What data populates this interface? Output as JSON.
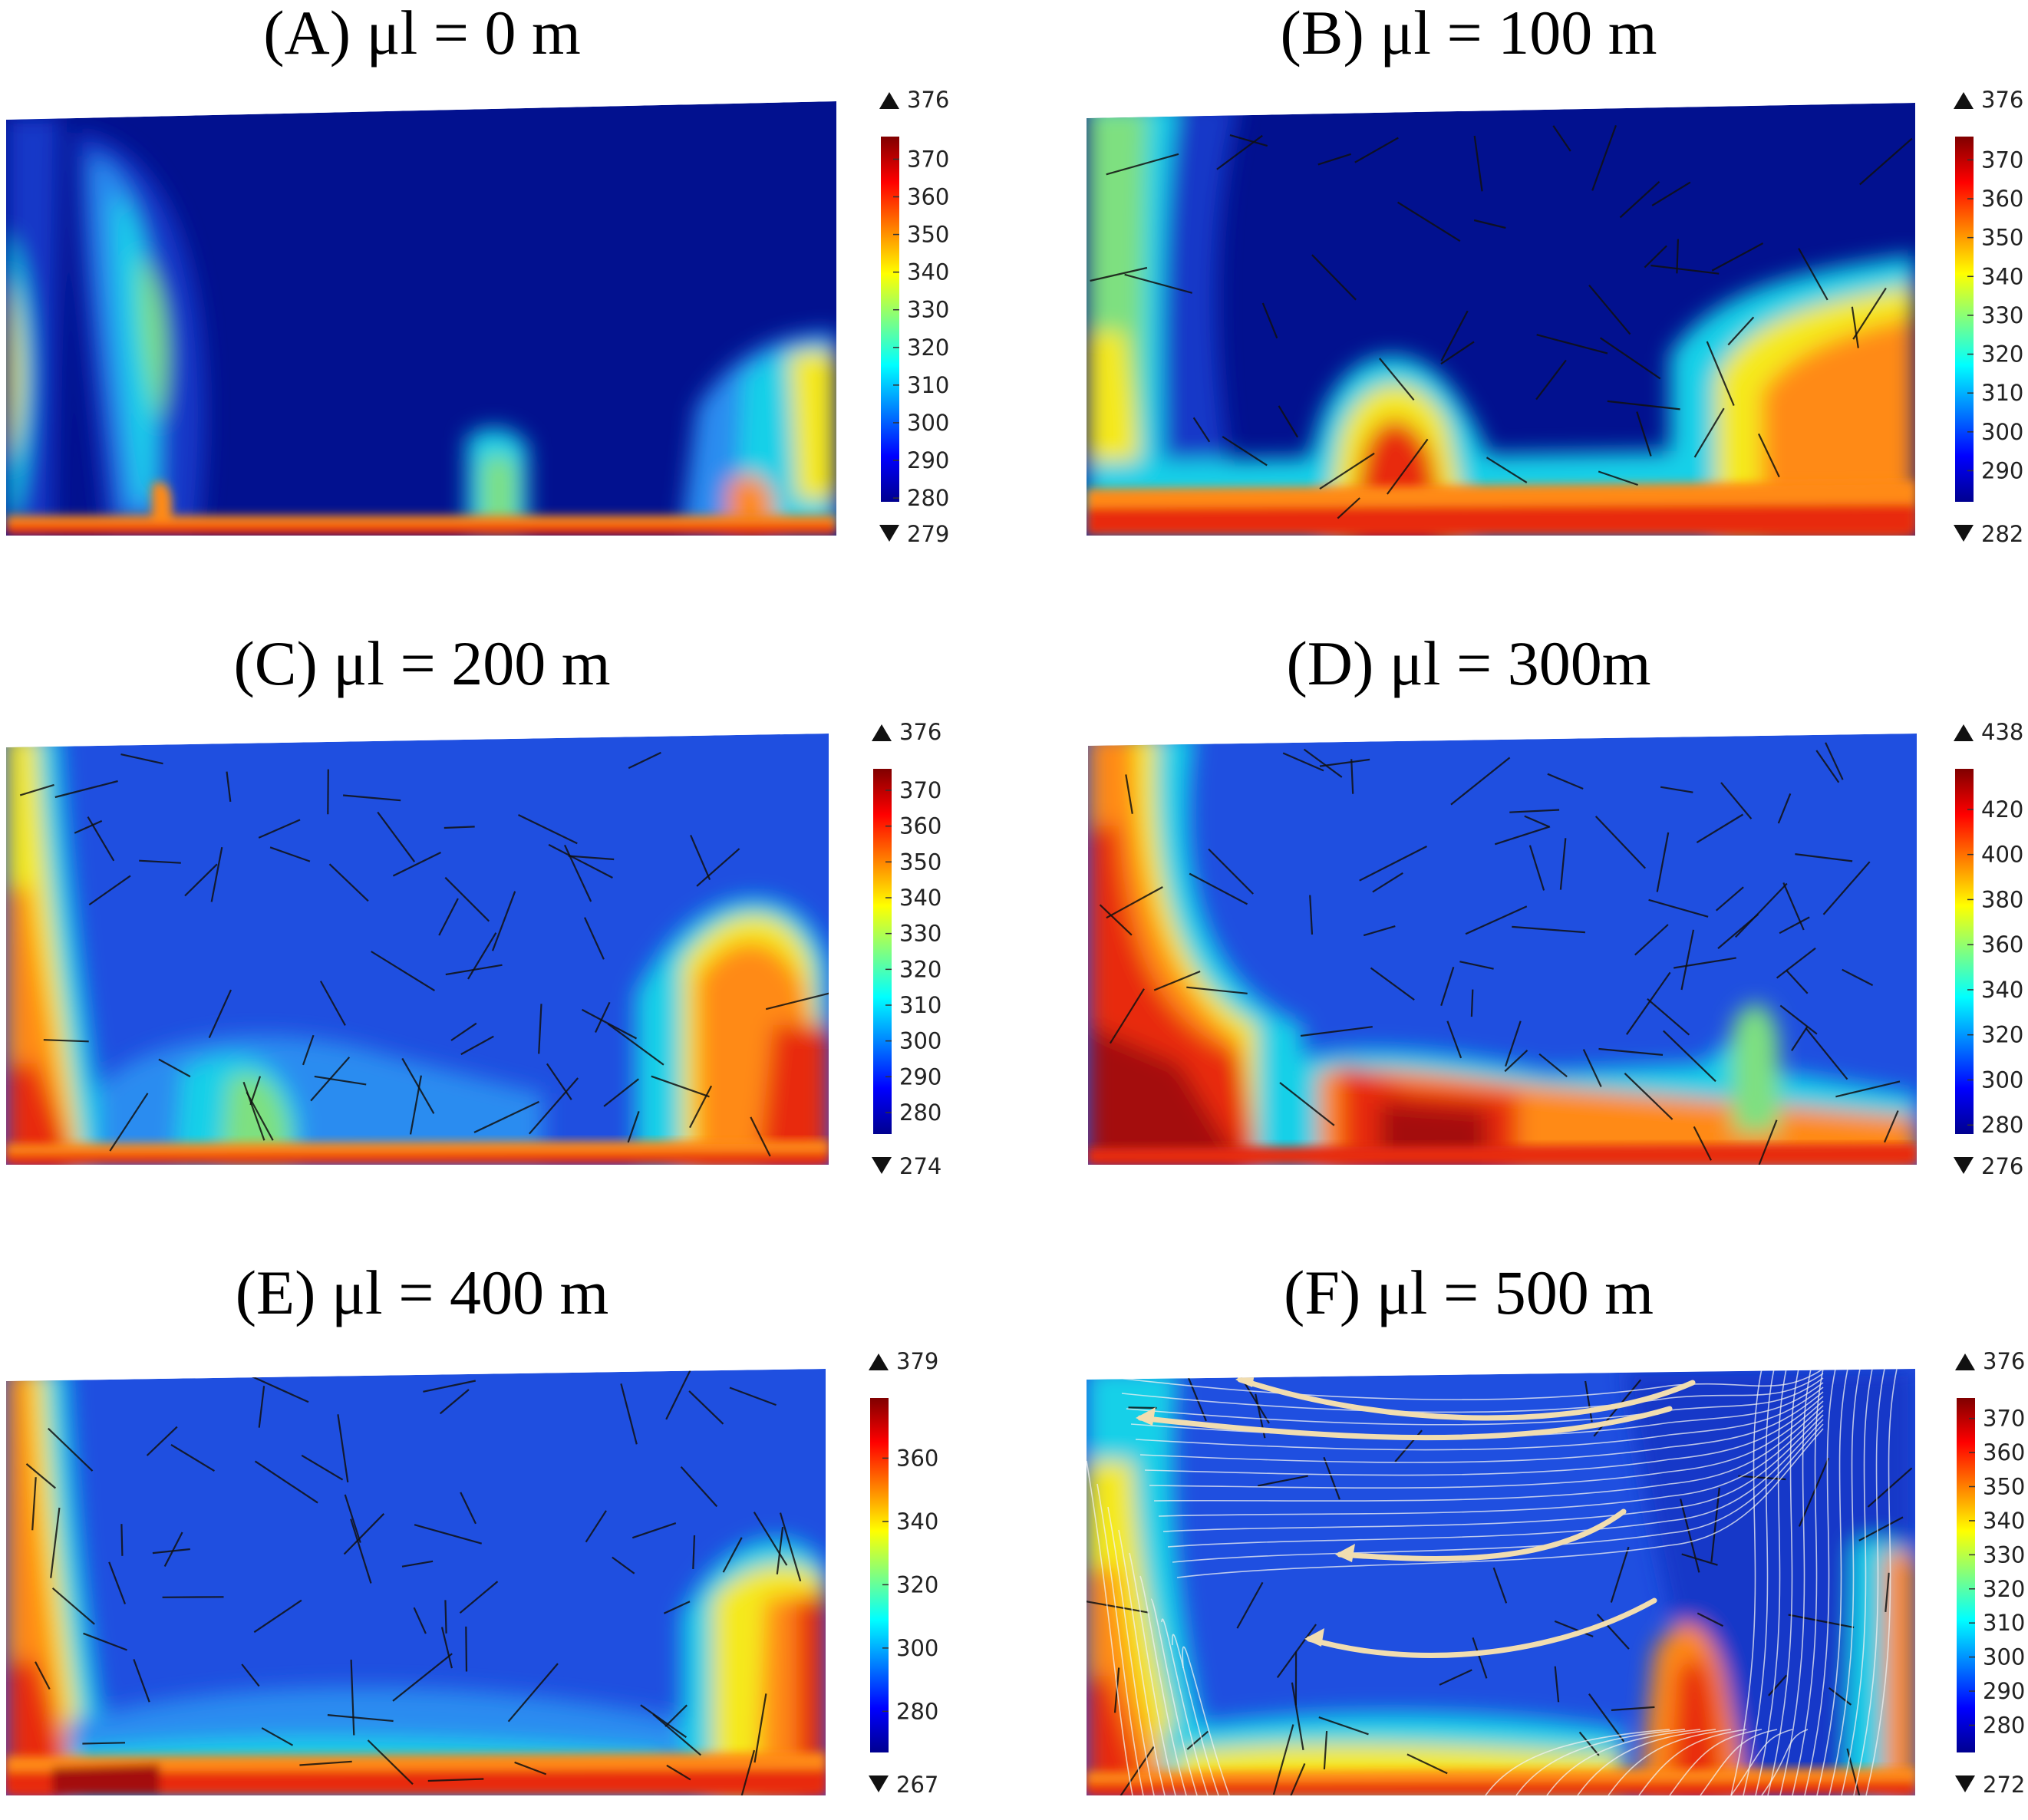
{
  "chart_data": [
    {
      "type": "heatmap",
      "title": "(A) μl = 0 m",
      "colorbar": {
        "max_label": "376",
        "min_label": "279",
        "range": [
          279,
          376
        ],
        "ticks": [
          "370",
          "360",
          "350",
          "340",
          "330",
          "320",
          "310",
          "300",
          "290",
          "280"
        ]
      },
      "colormap": "jet",
      "fractures_shown": false,
      "streamlines_shown": false
    },
    {
      "type": "heatmap",
      "title": "(B) μl = 100 m",
      "colorbar": {
        "max_label": "376",
        "min_label": "282",
        "range": [
          282,
          376
        ],
        "ticks": [
          "370",
          "360",
          "350",
          "340",
          "330",
          "320",
          "310",
          "300",
          "290"
        ]
      },
      "colormap": "jet",
      "fractures_shown": true,
      "streamlines_shown": false
    },
    {
      "type": "heatmap",
      "title": "(C) μl = 200 m",
      "colorbar": {
        "max_label": "376",
        "min_label": "274",
        "range": [
          274,
          376
        ],
        "ticks": [
          "370",
          "360",
          "350",
          "340",
          "330",
          "320",
          "310",
          "300",
          "290",
          "280"
        ]
      },
      "colormap": "jet",
      "fractures_shown": true,
      "streamlines_shown": false
    },
    {
      "type": "heatmap",
      "title": "(D) μl = 300m",
      "colorbar": {
        "max_label": "438",
        "min_label": "276",
        "range": [
          276,
          438
        ],
        "ticks": [
          "420",
          "400",
          "380",
          "360",
          "340",
          "320",
          "300",
          "280"
        ]
      },
      "colormap": "jet",
      "fractures_shown": true,
      "streamlines_shown": false
    },
    {
      "type": "heatmap",
      "title": "(E) μl = 400 m",
      "colorbar": {
        "max_label": "379",
        "min_label": "267",
        "range": [
          267,
          379
        ],
        "ticks": [
          "360",
          "340",
          "320",
          "300",
          "280"
        ]
      },
      "colormap": "jet",
      "fractures_shown": true,
      "streamlines_shown": false
    },
    {
      "type": "heatmap",
      "title": "(F) μl = 500 m",
      "colorbar": {
        "max_label": "376",
        "min_label": "272",
        "range": [
          272,
          376
        ],
        "ticks": [
          "370",
          "360",
          "350",
          "340",
          "330",
          "320",
          "310",
          "300",
          "290",
          "280"
        ]
      },
      "colormap": "jet",
      "fractures_shown": true,
      "streamlines_shown": true
    }
  ]
}
